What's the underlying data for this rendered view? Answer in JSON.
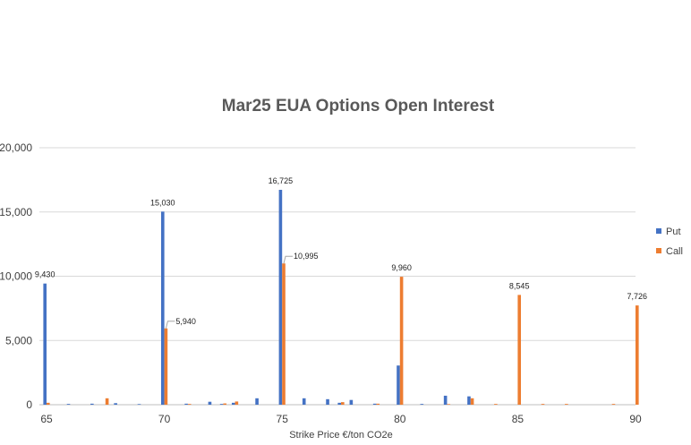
{
  "chart_data": {
    "type": "bar",
    "title": "Mar25 EUA Options Open Interest",
    "xlabel": "Strike Price €/ton CO2e",
    "ylabel": "",
    "xlim": [
      65,
      90
    ],
    "ylim": [
      0,
      20000
    ],
    "yticks": [
      "0",
      "5,000",
      "10,000",
      "15,000",
      "20,000"
    ],
    "xticks": [
      "65",
      "70",
      "75",
      "80",
      "85",
      "90"
    ],
    "grid": true,
    "legend_position": "right",
    "colors": {
      "Put": "#4472C4",
      "Call": "#ED7D31"
    },
    "series": [
      {
        "name": "Put",
        "points": [
          {
            "x": 65,
            "y": 9430,
            "label": "9,430"
          },
          {
            "x": 66,
            "y": 60
          },
          {
            "x": 67,
            "y": 80
          },
          {
            "x": 68,
            "y": 120
          },
          {
            "x": 69,
            "y": 50
          },
          {
            "x": 70,
            "y": 15030,
            "label": "15,030"
          },
          {
            "x": 71,
            "y": 80
          },
          {
            "x": 72,
            "y": 230
          },
          {
            "x": 72.5,
            "y": 60
          },
          {
            "x": 73,
            "y": 150
          },
          {
            "x": 74,
            "y": 500
          },
          {
            "x": 75,
            "y": 16725,
            "label": "16,725"
          },
          {
            "x": 76,
            "y": 500
          },
          {
            "x": 77,
            "y": 430
          },
          {
            "x": 77.5,
            "y": 150
          },
          {
            "x": 78,
            "y": 370
          },
          {
            "x": 79,
            "y": 80
          },
          {
            "x": 80,
            "y": 3050
          },
          {
            "x": 81,
            "y": 60
          },
          {
            "x": 82,
            "y": 700
          },
          {
            "x": 83,
            "y": 650
          }
        ]
      },
      {
        "name": "Call",
        "points": [
          {
            "x": 65,
            "y": 150
          },
          {
            "x": 67.5,
            "y": 500
          },
          {
            "x": 70,
            "y": 5940,
            "label": "5,940"
          },
          {
            "x": 71,
            "y": 60
          },
          {
            "x": 72.5,
            "y": 100
          },
          {
            "x": 73,
            "y": 250
          },
          {
            "x": 75,
            "y": 10995,
            "label": "10,995"
          },
          {
            "x": 77.5,
            "y": 200
          },
          {
            "x": 79,
            "y": 80
          },
          {
            "x": 80,
            "y": 9960,
            "label": "9,960"
          },
          {
            "x": 82,
            "y": 50
          },
          {
            "x": 83,
            "y": 500
          },
          {
            "x": 84,
            "y": 60
          },
          {
            "x": 85,
            "y": 8545,
            "label": "8,545"
          },
          {
            "x": 86,
            "y": 60
          },
          {
            "x": 87,
            "y": 60
          },
          {
            "x": 89,
            "y": 60
          },
          {
            "x": 90,
            "y": 7726,
            "label": "7,726"
          }
        ]
      }
    ]
  }
}
